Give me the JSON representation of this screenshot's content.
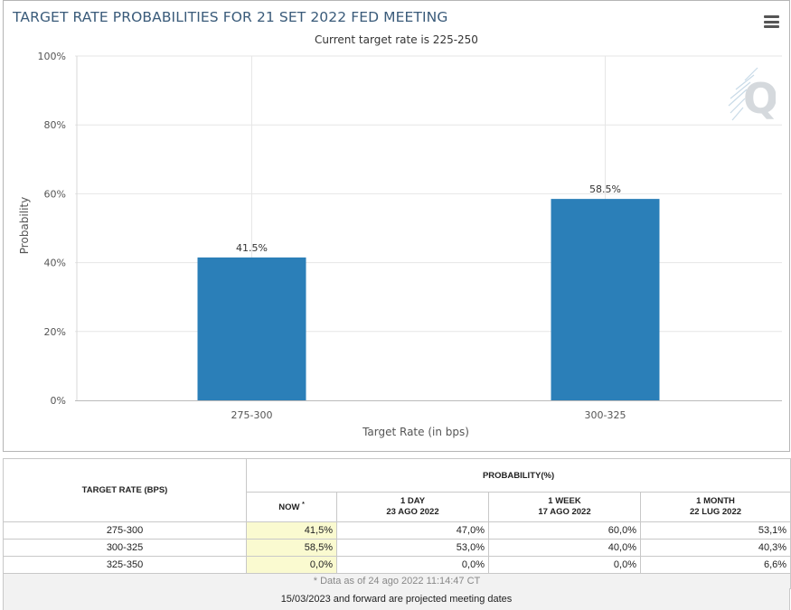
{
  "header": {
    "title": "TARGET RATE PROBABILITIES FOR 21 SET 2022 FED MEETING",
    "subtitle": "Current target rate is 225-250"
  },
  "icons": {
    "menu": "hamburger-menu-icon",
    "logo": "cme-q-logo-icon"
  },
  "colors": {
    "bar": "#2b7fb8",
    "title": "#3a5b7a",
    "now_highlight": "#fafad0"
  },
  "chart_data": {
    "type": "bar",
    "categories": [
      "275-300",
      "300-325"
    ],
    "values": [
      41.5,
      58.5
    ],
    "value_labels": [
      "41.5%",
      "58.5%"
    ],
    "ylim": [
      0,
      100
    ],
    "yticks": [
      "0%",
      "20%",
      "40%",
      "60%",
      "80%",
      "100%"
    ],
    "xlabel": "Target Rate (in bps)",
    "ylabel": "Probability",
    "grid": true
  },
  "table": {
    "header_rate": "TARGET RATE (BPS)",
    "header_prob": "PROBABILITY(%)",
    "now_label": "NOW",
    "now_marker": "*",
    "columns": [
      {
        "line1": "1 DAY",
        "line2": "23 AGO 2022"
      },
      {
        "line1": "1 WEEK",
        "line2": "17 AGO 2022"
      },
      {
        "line1": "1 MONTH",
        "line2": "22 LUG 2022"
      }
    ],
    "rows": [
      {
        "rate": "275-300",
        "now": "41,5%",
        "day": "47,0%",
        "week": "60,0%",
        "month": "53,1%"
      },
      {
        "rate": "300-325",
        "now": "58,5%",
        "day": "53,0%",
        "week": "40,0%",
        "month": "40,3%"
      },
      {
        "rate": "325-350",
        "now": "0,0%",
        "day": "0,0%",
        "week": "0,0%",
        "month": "6,6%"
      }
    ],
    "footnote": "* Data as of 24 ago 2022 11:14:47 CT"
  },
  "note": "15/03/2023 and forward are projected meeting dates"
}
